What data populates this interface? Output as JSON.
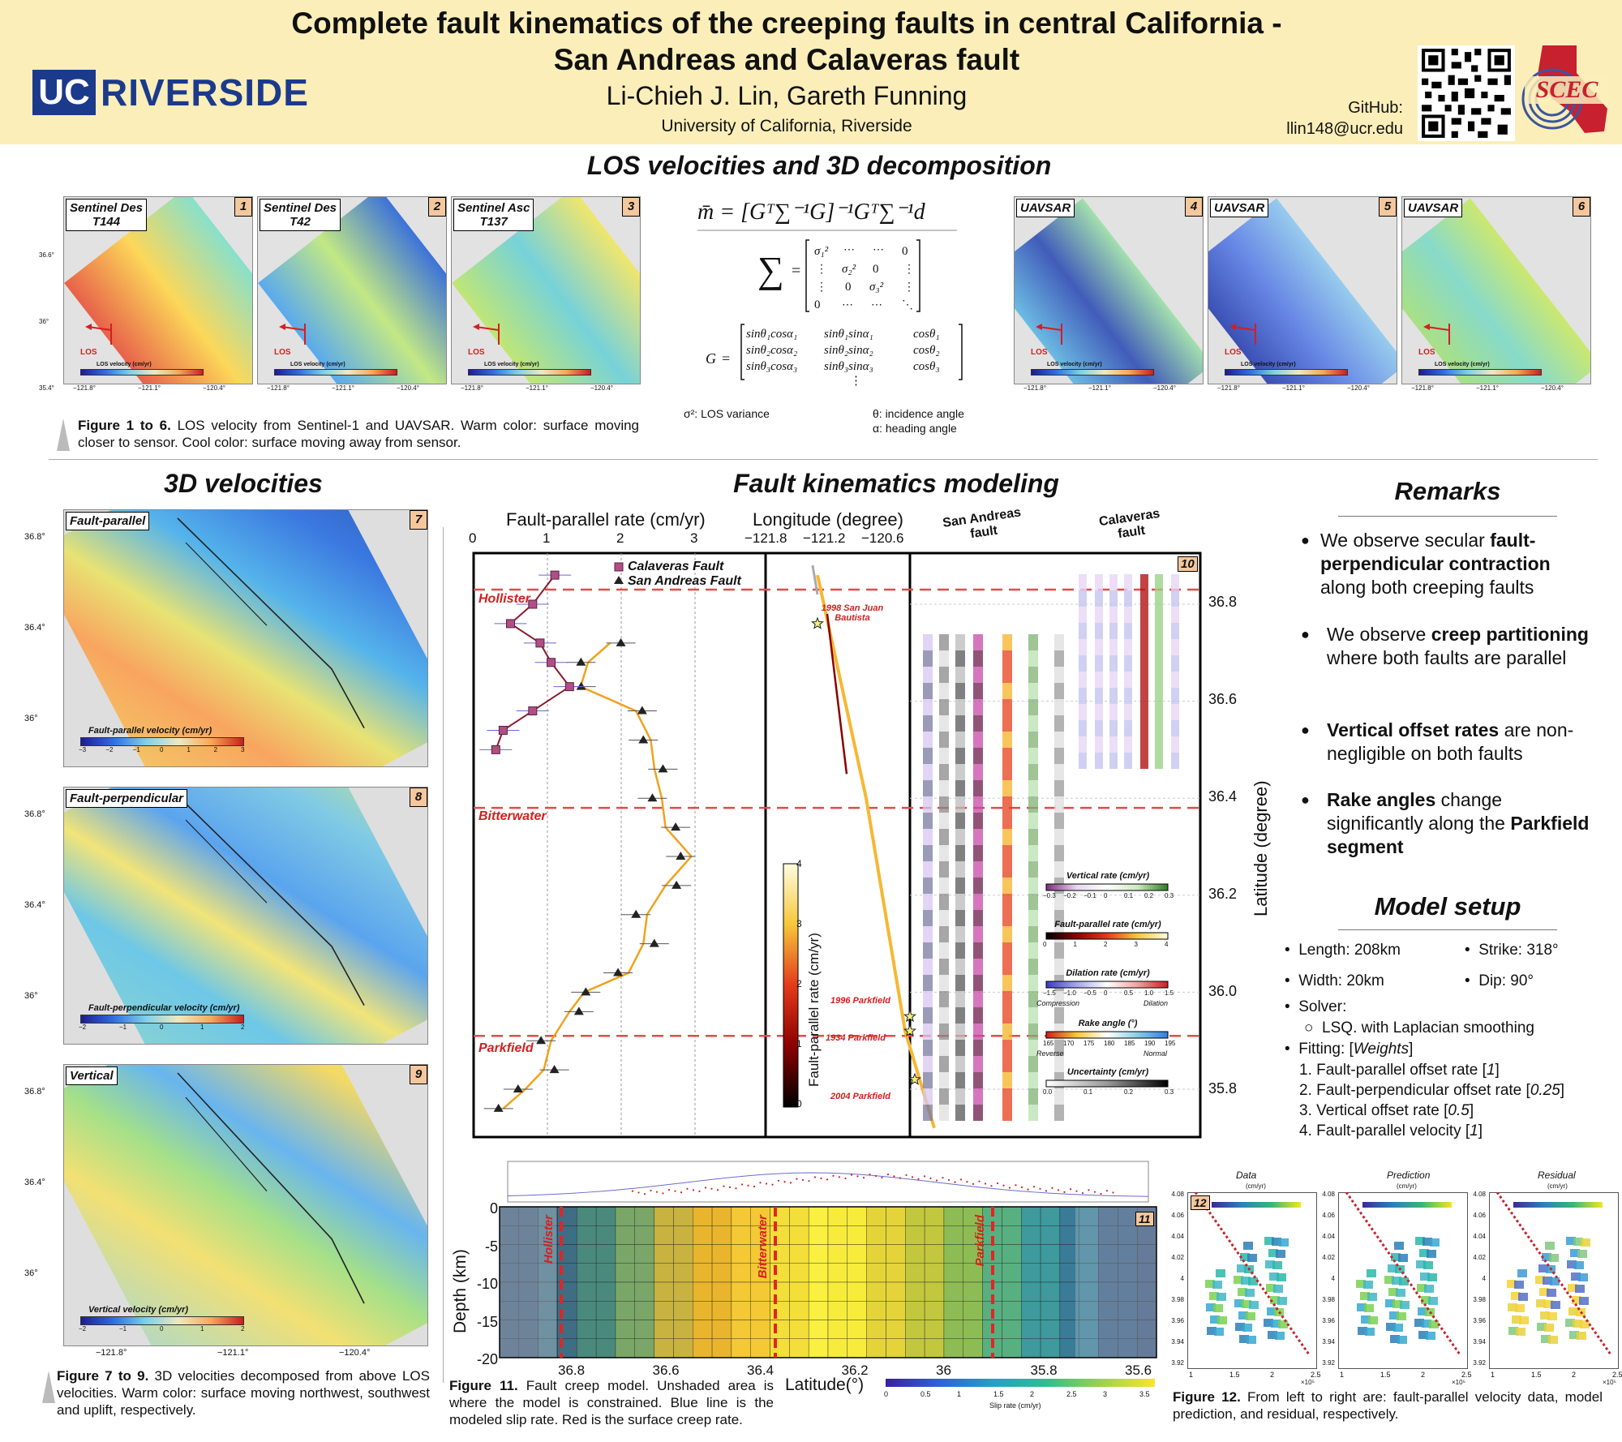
{
  "header": {
    "title_line1": "Complete fault kinematics of the creeping faults in central California -",
    "title_line2": "San Andreas and Calaveras fault",
    "authors": "Li-Chieh J. Lin, Gareth Funning",
    "affiliation": "University of California, Riverside",
    "github_label": "GitHub:",
    "github_email": "llin148@ucr.edu",
    "logo_uc": "UC",
    "logo_word": "RIVERSIDE",
    "logo_scec": "SCEC"
  },
  "section_los": {
    "heading": "LOS velocities and 3D decomposition",
    "panels": [
      {
        "label": "Sentinel Des\nT144",
        "num": "1"
      },
      {
        "label": "Sentinel Des\nT42",
        "num": "2"
      },
      {
        "label": "Sentinel Asc\nT137",
        "num": "3"
      },
      {
        "label": "UAVSAR",
        "num": "4"
      },
      {
        "label": "UAVSAR",
        "num": "5"
      },
      {
        "label": "UAVSAR",
        "num": "6"
      }
    ],
    "los_arrow_label": "LOS",
    "colorbar_label": "LOS velocity (cm/yr)",
    "lat_ticks": [
      "36.6°",
      "36°",
      "35.4°"
    ],
    "lon_ticks": [
      "−121.8°",
      "−121.1°",
      "−120.4°"
    ],
    "caption_bold": "Figure 1 to 6.",
    "caption_text": " LOS velocity from Sentinel-1 and UAVSAR. Warm color: surface moving closer to sensor. Cool color: surface moving away from sensor.",
    "legend_sigma": "σ²: LOS variance",
    "legend_theta": "θ: incidence angle",
    "legend_alpha": "α: heading angle"
  },
  "section_3d": {
    "heading": "3D velocities",
    "panels": [
      {
        "label": "Fault-parallel",
        "num": "7",
        "colorbar": "Fault-parallel velocity (cm/yr)",
        "ticks": [
          "−3",
          "−2",
          "−1",
          "0",
          "1",
          "2",
          "3"
        ]
      },
      {
        "label": "Fault-perpendicular",
        "num": "8",
        "colorbar": "Fault-perpendicular velocity (cm/yr)",
        "ticks": [
          "−2",
          "−1",
          "0",
          "1",
          "2"
        ]
      },
      {
        "label": "Vertical",
        "num": "9",
        "colorbar": "Vertical velocity (cm/yr)",
        "ticks": [
          "−2",
          "−1",
          "0",
          "1",
          "2"
        ]
      }
    ],
    "lat_ticks": [
      "36.8°",
      "36.4°",
      "36°"
    ],
    "lon_ticks": [
      "−121.8°",
      "−121.1°",
      "−120.4°"
    ],
    "caption_bold": "Figure 7 to 9.",
    "caption_text": " 3D velocities decomposed from above LOS velocities. Warm color: surface moving northwest, southwest and uplift, respectively."
  },
  "section_model": {
    "heading": "Fault kinematics modeling",
    "fig10_num": "10",
    "top_axis1": "Fault-parallel rate (cm/yr)",
    "top_axis1_ticks": [
      "0",
      "1",
      "2",
      "3"
    ],
    "top_axis2": "Longitude (degree)",
    "top_axis2_ticks": [
      "−121.8",
      "−121.2",
      "−120.6"
    ],
    "col_san_andreas": "San Andreas fault",
    "col_calaveras": "Calaveras fault",
    "right_axis": "Latitude (degree)",
    "right_ticks": [
      "36.8",
      "36.6",
      "36.4",
      "36.2",
      "36.0",
      "35.8"
    ],
    "legend_calaveras": "Calaveras Fault",
    "legend_san_andreas": "San Andreas Fault",
    "places": [
      "Hollister",
      "Bitterwater",
      "Parkfield"
    ],
    "quakes": [
      "1998 San Juan Bautista",
      "1996 Parkfield",
      "1934 Parkfield",
      "2004 Parkfield"
    ],
    "vert_colorbar": "Fault-parallel rate (cm/yr)",
    "vert_colorbar_ticks": [
      "4",
      "3",
      "2",
      "1",
      "0"
    ],
    "legends": [
      {
        "title": "Vertical rate (cm/yr)",
        "ticks": [
          "−0.3",
          "−0.2",
          "−0.1",
          "0",
          "0.1",
          "0.2",
          "0.3"
        ],
        "left": "",
        "right": ""
      },
      {
        "title": "Fault-parallel rate (cm/yr)",
        "ticks": [
          "0",
          "1",
          "2",
          "3",
          "4"
        ],
        "left": "",
        "right": ""
      },
      {
        "title": "Dilation rate (cm/yr)",
        "ticks": [
          "−1.5",
          "−1.0",
          "−0.5",
          "0",
          "0.5",
          "1.0",
          "1.5"
        ],
        "left": "Compression",
        "right": "Dilation"
      },
      {
        "title": "Rake angle (°)",
        "ticks": [
          "165",
          "170",
          "175",
          "180",
          "185",
          "190",
          "195"
        ],
        "left": "Reverse",
        "right": "Normal"
      },
      {
        "title": "Uncertainty (cm/yr)",
        "ticks": [
          "0.0",
          "0.1",
          "0.2",
          "0.3"
        ],
        "left": "",
        "right": ""
      }
    ],
    "fig11_num": "11",
    "fig11_ylabel": "Depth (km)",
    "fig11_yticks": [
      "0",
      "-5",
      "-10",
      "-15",
      "-20"
    ],
    "fig11_xlabel": "Latitude(°)",
    "fig11_xticks": [
      "36.8",
      "36.6",
      "36.4",
      "36.2",
      "36",
      "35.8",
      "35.6"
    ],
    "fig11_colorbar": "Slip rate (cm/yr)",
    "fig11_colorbar_ticks": [
      "0",
      "0.5",
      "1",
      "1.5",
      "2",
      "2.5",
      "3",
      "3.5"
    ],
    "fig11_caption_bold": "Figure 11.",
    "fig11_caption_text": " Fault creep model. Unshaded area is where the model is constrained. Blue line is the modeled slip rate. Red is the surface creep rate."
  },
  "remarks": {
    "heading": "Remarks",
    "items": [
      {
        "pre": "We observe secular ",
        "bold": "fault-perpendicular contraction",
        "post": " along both creeping faults"
      },
      {
        "pre": "We observe ",
        "bold": "creep partitioning",
        "post": " where both faults are parallel"
      },
      {
        "pre": "",
        "bold": "Vertical offset rates",
        "post": " are non-negligible on both faults"
      },
      {
        "pre": "",
        "bold": "Rake angles",
        "post": " change significantly along the "
      }
    ],
    "last_bold_tail": "Parkfield segment"
  },
  "model_setup": {
    "heading": "Model setup",
    "length": "Length: 208km",
    "strike": "Strike: 318°",
    "width": "Width: 20km",
    "dip": "Dip: 90°",
    "solver": "Solver:",
    "solver_sub": "LSQ. with Laplacian smoothing",
    "fitting": "Fitting: [",
    "fitting_weights": "Weights",
    "fitting_close": "]",
    "weights": [
      {
        "n": "1.",
        "text": "Fault-parallel offset rate [",
        "w": "1",
        "close": "]"
      },
      {
        "n": "2.",
        "text": "Fault-perpendicular offset rate [",
        "w": "0.25",
        "close": "]"
      },
      {
        "n": "3.",
        "text": "Vertical offset rate [",
        "w": "0.5",
        "close": "]"
      },
      {
        "n": "4.",
        "text": "Fault-parallel velocity [",
        "w": "1",
        "close": "]"
      }
    ]
  },
  "fig12": {
    "num": "12",
    "titles": [
      "Data",
      "Prediction",
      "Residual"
    ],
    "unit": "(cm/yr)",
    "yticks": [
      "4.08",
      "4.06",
      "4.04",
      "4.02",
      "4",
      "3.98",
      "3.96",
      "3.94",
      "3.92"
    ],
    "xticks": [
      "1",
      "1.5",
      "2",
      "2.5"
    ],
    "xexp": "×10⁵",
    "caption_bold": "Figure 12.",
    "caption_text": " From left to right are: fault-parallel velocity data, model prediction, and residual, respectively."
  }
}
